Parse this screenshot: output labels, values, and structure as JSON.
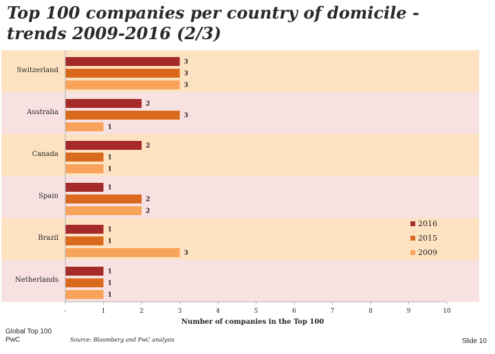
{
  "slide": {
    "title_line1": "Top 100 companies per country of domicile -",
    "title_line2": "trends 2009-2016 (2/3)"
  },
  "footer": {
    "left_line1": "Global Top 100",
    "left_line2": "PwC",
    "source": "Source: Bloomberg and PwC analysis",
    "slide_number": "Slide 10"
  },
  "chart_data": {
    "type": "bar",
    "orientation": "horizontal",
    "categories": [
      "Switzerland",
      "Australia",
      "Canada",
      "Spain",
      "Brazil",
      "Netherlands"
    ],
    "series": [
      {
        "name": "2016",
        "color": "#a52a2a",
        "values": [
          3,
          2,
          2,
          1,
          1,
          1
        ]
      },
      {
        "name": "2015",
        "color": "#d9691c",
        "values": [
          3,
          3,
          1,
          2,
          1,
          1
        ]
      },
      {
        "name": "2009",
        "color": "#f9a35a",
        "values": [
          3,
          1,
          1,
          2,
          3,
          1
        ]
      }
    ],
    "xlabel": "Number of companies in the Top 100",
    "xlim": [
      0,
      10
    ],
    "x_tick_labels": [
      "-",
      "1",
      "2",
      "3",
      "4",
      "5",
      "6",
      "7",
      "8",
      "9",
      "10"
    ],
    "band_colors": [
      "#fde2c2",
      "#f7e2e1"
    ],
    "legend_position": "right",
    "data_labels": true
  }
}
